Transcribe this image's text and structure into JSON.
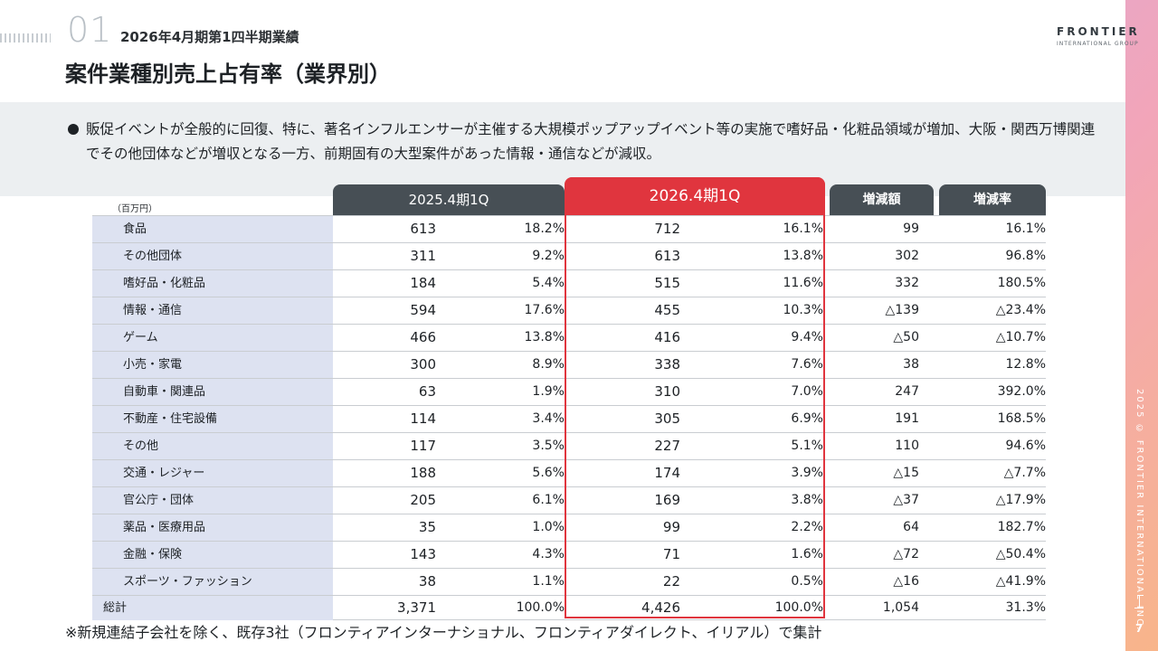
{
  "header": {
    "section_number": "01",
    "subtitle": "2026年4月期第1四半期業績",
    "title": "案件業種別売上占有率（業界別）"
  },
  "logo": {
    "name": "FRONTIER",
    "sub": "INTERNATIONAL GROUP"
  },
  "summary": {
    "text": "販促イベントが全般的に回復、特に、著名インフルエンサーが主催する大規模ポップアップイベント等の実施で嗜好品・化粧品領域が増加、大阪・関西万博関連でその他団体などが増収となる一方、前期固有の大型案件があった情報・通信などが減収。"
  },
  "table": {
    "unit": "（百万円）",
    "headers": {
      "prev": "2025.4期1Q",
      "curr": "2026.4期1Q",
      "diff": "増減額",
      "rate": "増減率"
    },
    "rows": [
      {
        "label": "食品",
        "prev_amt": "613",
        "prev_pct": "18.2%",
        "curr_amt": "712",
        "curr_pct": "16.1%",
        "diff": "99",
        "rate": "16.1%"
      },
      {
        "label": "その他団体",
        "prev_amt": "311",
        "prev_pct": "9.2%",
        "curr_amt": "613",
        "curr_pct": "13.8%",
        "diff": "302",
        "rate": "96.8%"
      },
      {
        "label": "嗜好品・化粧品",
        "prev_amt": "184",
        "prev_pct": "5.4%",
        "curr_amt": "515",
        "curr_pct": "11.6%",
        "diff": "332",
        "rate": "180.5%"
      },
      {
        "label": "情報・通信",
        "prev_amt": "594",
        "prev_pct": "17.6%",
        "curr_amt": "455",
        "curr_pct": "10.3%",
        "diff": "△139",
        "rate": "△23.4%"
      },
      {
        "label": "ゲーム",
        "prev_amt": "466",
        "prev_pct": "13.8%",
        "curr_amt": "416",
        "curr_pct": "9.4%",
        "diff": "△50",
        "rate": "△10.7%"
      },
      {
        "label": "小売・家電",
        "prev_amt": "300",
        "prev_pct": "8.9%",
        "curr_amt": "338",
        "curr_pct": "7.6%",
        "diff": "38",
        "rate": "12.8%"
      },
      {
        "label": "自動車・関連品",
        "prev_amt": "63",
        "prev_pct": "1.9%",
        "curr_amt": "310",
        "curr_pct": "7.0%",
        "diff": "247",
        "rate": "392.0%"
      },
      {
        "label": "不動産・住宅設備",
        "prev_amt": "114",
        "prev_pct": "3.4%",
        "curr_amt": "305",
        "curr_pct": "6.9%",
        "diff": "191",
        "rate": "168.5%"
      },
      {
        "label": "その他",
        "prev_amt": "117",
        "prev_pct": "3.5%",
        "curr_amt": "227",
        "curr_pct": "5.1%",
        "diff": "110",
        "rate": "94.6%"
      },
      {
        "label": "交通・レジャー",
        "prev_amt": "188",
        "prev_pct": "5.6%",
        "curr_amt": "174",
        "curr_pct": "3.9%",
        "diff": "△15",
        "rate": "△7.7%"
      },
      {
        "label": "官公庁・団体",
        "prev_amt": "205",
        "prev_pct": "6.1%",
        "curr_amt": "169",
        "curr_pct": "3.8%",
        "diff": "△37",
        "rate": "△17.9%"
      },
      {
        "label": "薬品・医療用品",
        "prev_amt": "35",
        "prev_pct": "1.0%",
        "curr_amt": "99",
        "curr_pct": "2.2%",
        "diff": "64",
        "rate": "182.7%"
      },
      {
        "label": "金融・保険",
        "prev_amt": "143",
        "prev_pct": "4.3%",
        "curr_amt": "71",
        "curr_pct": "1.6%",
        "diff": "△72",
        "rate": "△50.4%"
      },
      {
        "label": "スポーツ・ファッション",
        "prev_amt": "38",
        "prev_pct": "1.1%",
        "curr_amt": "22",
        "curr_pct": "0.5%",
        "diff": "△16",
        "rate": "△41.9%"
      }
    ],
    "total": {
      "label": "総計",
      "prev_amt": "3,371",
      "prev_pct": "100.0%",
      "curr_amt": "4,426",
      "curr_pct": "100.0%",
      "diff": "1,054",
      "rate": "31.3%"
    }
  },
  "footnote": "※新規連結子会社を除く、既存3社（フロンティアインターナショナル、フロンティアダイレクト、イリアル）で集計",
  "copyright": "2025 © FRONTIER INTERNATIONAL INC.",
  "page_number": "7",
  "colors": {
    "accent_red": "#e0353e",
    "header_dark": "#474f55",
    "label_bg": "#dde2f1",
    "summary_bg": "#eceff1"
  }
}
